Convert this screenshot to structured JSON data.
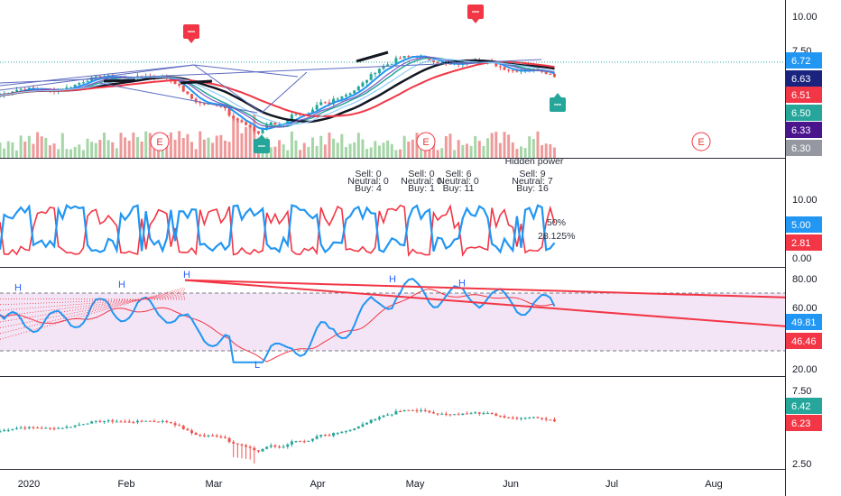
{
  "colors": {
    "up": "#26a69a",
    "down": "#ef5350",
    "blue": "#2196f3",
    "red": "#f23645",
    "purple": "#4a148c",
    "grey": "#9598a1",
    "rsiBand": "#f3e5f5",
    "dark": "#131722"
  },
  "chart_data": [
    {
      "type": "candlestick",
      "pane": "main",
      "yticks": [
        "10.00",
        "7.50"
      ],
      "price_tags": [
        {
          "label": "6.72",
          "color": "#2196f3"
        },
        {
          "label": "6.63",
          "color": "#1a237e"
        },
        {
          "label": "6.51",
          "color": "#f23645"
        },
        {
          "label": "6.50",
          "color": "#26a69a"
        },
        {
          "label": "6.33",
          "color": "#4a148c"
        },
        {
          "label": "6.30",
          "color": "#9598a1"
        }
      ],
      "markers": [
        {
          "type": "HH",
          "color": "#f23645",
          "date_index": 35
        },
        {
          "type": "HH",
          "color": "#f23645",
          "date_index": 100
        },
        {
          "type": "LL",
          "color": "#26a69a",
          "date_index": 118
        },
        {
          "type": "LL",
          "color": "#26a69a",
          "date_index": 58
        }
      ],
      "earnings_markers": [
        "E",
        "E",
        "E"
      ]
    },
    {
      "type": "line",
      "pane": "hidden-power",
      "title": "Hidden power",
      "yticks": [
        "10.00",
        "5.00",
        "0.00"
      ],
      "price_tags": [
        {
          "label": "5.00",
          "color": "#2196f3"
        },
        {
          "label": "2.81",
          "color": "#f23645"
        }
      ],
      "summaries": [
        {
          "sell": "Sell: 0",
          "neutral": "Neutral: 0",
          "buy": "Buy: 4"
        },
        {
          "sell": "Sell: 0",
          "neutral": "Neutral: 0",
          "buy": "Buy: 1"
        },
        {
          "sell": "Sell: 6",
          "neutral": "Neutral: 0",
          "buy": "Buy: 11"
        },
        {
          "sell": "Sell: 9",
          "neutral": "Neutral: 7",
          "buy": "Buy: 16"
        }
      ],
      "percent_labels": [
        "50%",
        "28.125%"
      ]
    },
    {
      "type": "line",
      "pane": "rsi",
      "yticks": [
        "80.00",
        "60.00",
        "20.00"
      ],
      "price_tags": [
        {
          "label": "49.81",
          "color": "#2196f3"
        },
        {
          "label": "46.46",
          "color": "#f23645"
        }
      ],
      "band": [
        30,
        70
      ],
      "pivot_labels": [
        "H",
        "H",
        "H",
        "H",
        "H",
        "L"
      ]
    },
    {
      "type": "candlestick",
      "pane": "lower-price",
      "yticks": [
        "7.50",
        "2.50"
      ],
      "price_tags": [
        {
          "label": "6.42",
          "color": "#26a69a"
        },
        {
          "label": "6.23",
          "color": "#f23645"
        }
      ]
    }
  ],
  "x_axis": {
    "labels": [
      "2020",
      "Feb",
      "Mar",
      "Apr",
      "May",
      "Jun",
      "Jul",
      "Aug"
    ]
  }
}
